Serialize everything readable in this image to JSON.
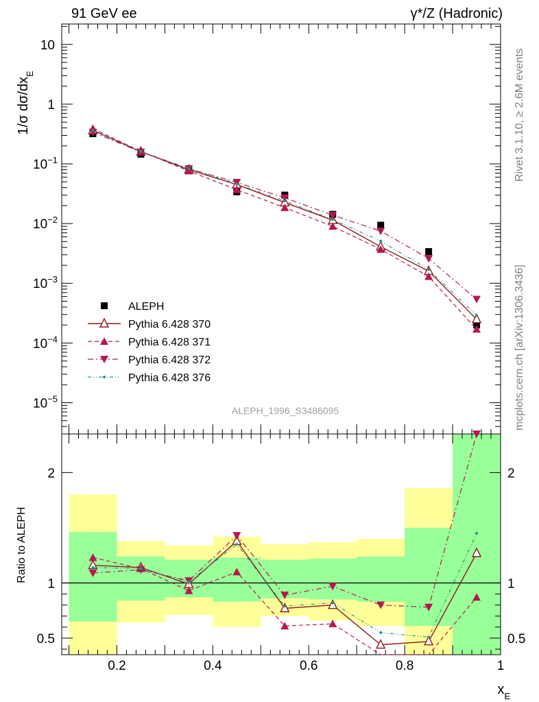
{
  "header": {
    "left": "91 GeV ee",
    "right": "γ*/Z (Hadronic)"
  },
  "side": {
    "rivet": "Rivet 3.1.10, ≥ 2.6M events",
    "mcplots": "mcplots.cern.ch [arXiv:1306.3436]"
  },
  "analysis_id": "ALEPH_1996_S3486095",
  "colors": {
    "data": "#000000",
    "s370": "#8b1a1a",
    "s371": "#b5174f",
    "s372": "#b5174f",
    "s376": "#1a9a8a",
    "band_outer": "#ffff99",
    "band_inner": "#99ff99"
  },
  "chart_data": [
    {
      "type": "scatter",
      "panel": "main",
      "ylabel": "1/σ dσ/dx_E",
      "yscale": "log",
      "ylim": [
        3e-06,
        22
      ],
      "xlim": [
        0.085,
        1.0
      ],
      "y_ticks": [
        "10",
        "1",
        "10^-1",
        "10^-2",
        "10^-3",
        "10^-4",
        "10^-5"
      ],
      "x": [
        0.15,
        0.25,
        0.35,
        0.45,
        0.55,
        0.65,
        0.75,
        0.85,
        0.95
      ],
      "series": [
        {
          "name": "ALEPH",
          "marker": "square",
          "values": [
            0.32,
            0.145,
            0.082,
            0.034,
            0.03,
            0.0143,
            0.0094,
            0.0034,
            0.0002
          ]
        },
        {
          "name": "Pythia 6.428 370",
          "marker": "open-triangle-up",
          "line": "solid",
          "values": [
            0.365,
            0.16,
            0.08,
            0.045,
            0.0225,
            0.0114,
            0.0041,
            0.0016,
            0.00025
          ]
        },
        {
          "name": "Pythia 6.428 371",
          "marker": "triangle-up",
          "line": "dashed",
          "values": [
            0.39,
            0.162,
            0.076,
            0.037,
            0.0185,
            0.009,
            0.0037,
            0.0013,
            0.00017
          ]
        },
        {
          "name": "Pythia 6.428 372",
          "marker": "triangle-down",
          "line": "dashdot",
          "values": [
            0.34,
            0.158,
            0.083,
            0.049,
            0.027,
            0.0138,
            0.0075,
            0.0026,
            0.00054
          ]
        },
        {
          "name": "Pythia 6.428 376",
          "marker": "dot",
          "line": "dashdotdot",
          "values": [
            0.36,
            0.162,
            0.084,
            0.046,
            0.024,
            0.0117,
            0.0051,
            0.0017,
            0.00029
          ]
        }
      ],
      "legend_position": "lower-left"
    },
    {
      "type": "line",
      "panel": "ratio",
      "ylabel": "Ratio to ALEPH",
      "xlabel": "x_E",
      "ylim": [
        0.35,
        2.35
      ],
      "x_ticks": [
        "0.2",
        "0.4",
        "0.6",
        "0.8",
        "1"
      ],
      "y_ticks": [
        "0.5",
        "1",
        "2"
      ],
      "reference_line": 1,
      "band_edges": [
        0.1,
        0.2,
        0.3,
        0.4,
        0.5,
        0.6,
        0.7,
        0.8,
        0.9,
        1.0
      ],
      "band_outer": [
        [
          0.35,
          1.8
        ],
        [
          0.64,
          1.38
        ],
        [
          0.71,
          1.34
        ],
        [
          0.6,
          1.42
        ],
        [
          0.7,
          1.35
        ],
        [
          0.66,
          1.37
        ],
        [
          0.61,
          1.4
        ],
        [
          0.35,
          1.86
        ],
        [
          0.35,
          2.35
        ]
      ],
      "band_inner": [
        [
          0.65,
          1.46
        ],
        [
          0.84,
          1.24
        ],
        [
          0.87,
          1.21
        ],
        [
          0.83,
          1.23
        ],
        [
          0.86,
          1.21
        ],
        [
          0.85,
          1.22
        ],
        [
          0.83,
          1.24
        ],
        [
          0.61,
          1.5
        ],
        [
          0.35,
          2.35
        ]
      ],
      "x": [
        0.15,
        0.25,
        0.35,
        0.45,
        0.55,
        0.65,
        0.75,
        0.85,
        0.95
      ],
      "series": [
        {
          "name": "Pythia 6.428 370",
          "values": [
            1.16,
            1.14,
            0.99,
            1.38,
            0.77,
            0.8,
            0.44,
            0.47,
            1.27
          ]
        },
        {
          "name": "Pythia 6.428 371",
          "values": [
            1.23,
            1.13,
            0.93,
            1.1,
            0.61,
            0.63,
            0.33,
            0.32,
            0.87
          ]
        },
        {
          "name": "Pythia 6.428 372",
          "values": [
            1.09,
            1.12,
            1.02,
            1.43,
            0.89,
            0.97,
            0.8,
            0.78,
            2.35
          ]
        },
        {
          "name": "Pythia 6.428 376",
          "values": [
            1.14,
            1.13,
            1.01,
            1.35,
            0.79,
            0.82,
            0.55,
            0.51,
            1.45
          ]
        }
      ]
    }
  ]
}
